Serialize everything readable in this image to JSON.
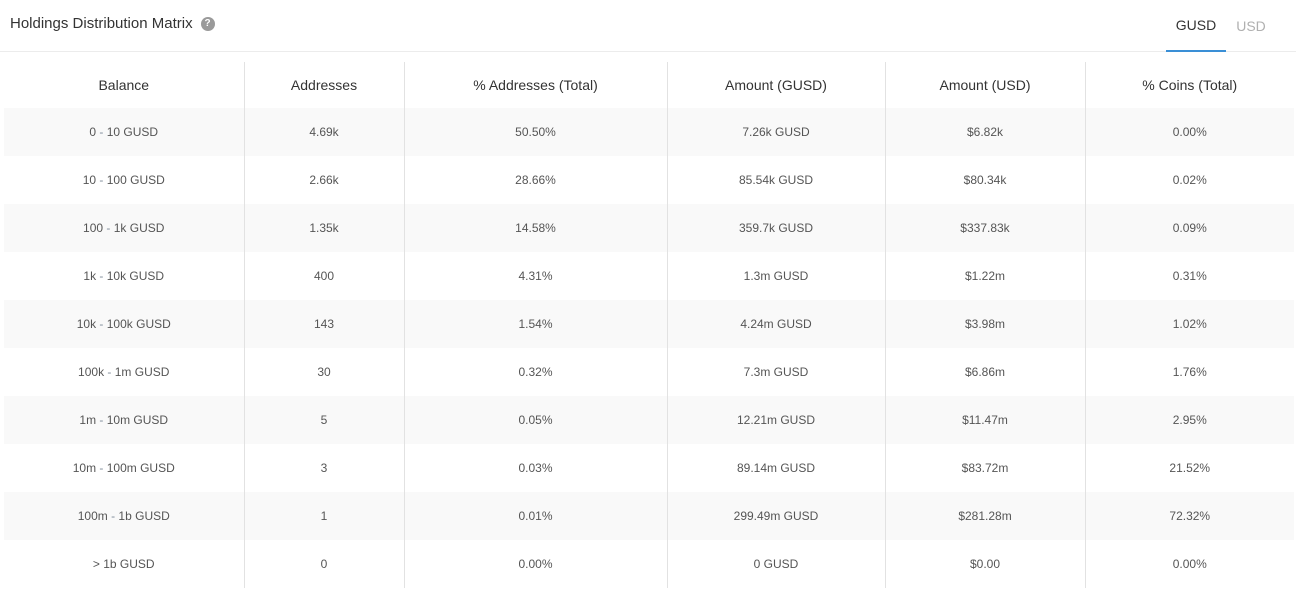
{
  "header": {
    "title": "Holdings Distribution Matrix",
    "help_icon": "question-circle-icon",
    "tabs": [
      {
        "label": "GUSD",
        "active": true
      },
      {
        "label": "USD",
        "active": false
      }
    ]
  },
  "table": {
    "columns": [
      "Balance",
      "Addresses",
      "% Addresses (Total)",
      "Amount (GUSD)",
      "Amount (USD)",
      "% Coins (Total)"
    ],
    "rows": [
      {
        "bal_lo": "0",
        "bal_hi": "10 GUSD",
        "addresses": "4.69k",
        "pct_addresses": "50.50%",
        "amount_gusd": "7.26k GUSD",
        "amount_usd": "$6.82k",
        "pct_coins": "0.00%"
      },
      {
        "bal_lo": "10",
        "bal_hi": "100 GUSD",
        "addresses": "2.66k",
        "pct_addresses": "28.66%",
        "amount_gusd": "85.54k GUSD",
        "amount_usd": "$80.34k",
        "pct_coins": "0.02%"
      },
      {
        "bal_lo": "100",
        "bal_hi": "1k GUSD",
        "addresses": "1.35k",
        "pct_addresses": "14.58%",
        "amount_gusd": "359.7k GUSD",
        "amount_usd": "$337.83k",
        "pct_coins": "0.09%"
      },
      {
        "bal_lo": "1k",
        "bal_hi": "10k GUSD",
        "addresses": "400",
        "pct_addresses": "4.31%",
        "amount_gusd": "1.3m GUSD",
        "amount_usd": "$1.22m",
        "pct_coins": "0.31%"
      },
      {
        "bal_lo": "10k",
        "bal_hi": "100k GUSD",
        "addresses": "143",
        "pct_addresses": "1.54%",
        "amount_gusd": "4.24m GUSD",
        "amount_usd": "$3.98m",
        "pct_coins": "1.02%"
      },
      {
        "bal_lo": "100k",
        "bal_hi": "1m GUSD",
        "addresses": "30",
        "pct_addresses": "0.32%",
        "amount_gusd": "7.3m GUSD",
        "amount_usd": "$6.86m",
        "pct_coins": "1.76%"
      },
      {
        "bal_lo": "1m",
        "bal_hi": "10m GUSD",
        "addresses": "5",
        "pct_addresses": "0.05%",
        "amount_gusd": "12.21m GUSD",
        "amount_usd": "$11.47m",
        "pct_coins": "2.95%"
      },
      {
        "bal_lo": "10m",
        "bal_hi": "100m GUSD",
        "addresses": "3",
        "pct_addresses": "0.03%",
        "amount_gusd": "89.14m GUSD",
        "amount_usd": "$83.72m",
        "pct_coins": "21.52%"
      },
      {
        "bal_lo": "100m",
        "bal_hi": "1b GUSD",
        "addresses": "1",
        "pct_addresses": "0.01%",
        "amount_gusd": "299.49m GUSD",
        "amount_usd": "$281.28m",
        "pct_coins": "72.32%"
      },
      {
        "bal_text": "> 1b GUSD",
        "addresses": "0",
        "pct_addresses": "0.00%",
        "amount_gusd": "0 GUSD",
        "amount_usd": "$0.00",
        "pct_coins": "0.00%"
      }
    ]
  },
  "colors": {
    "accent": "#3a8fd6",
    "separator": "#7f8c9a",
    "stripe": "#f9f9f9"
  }
}
